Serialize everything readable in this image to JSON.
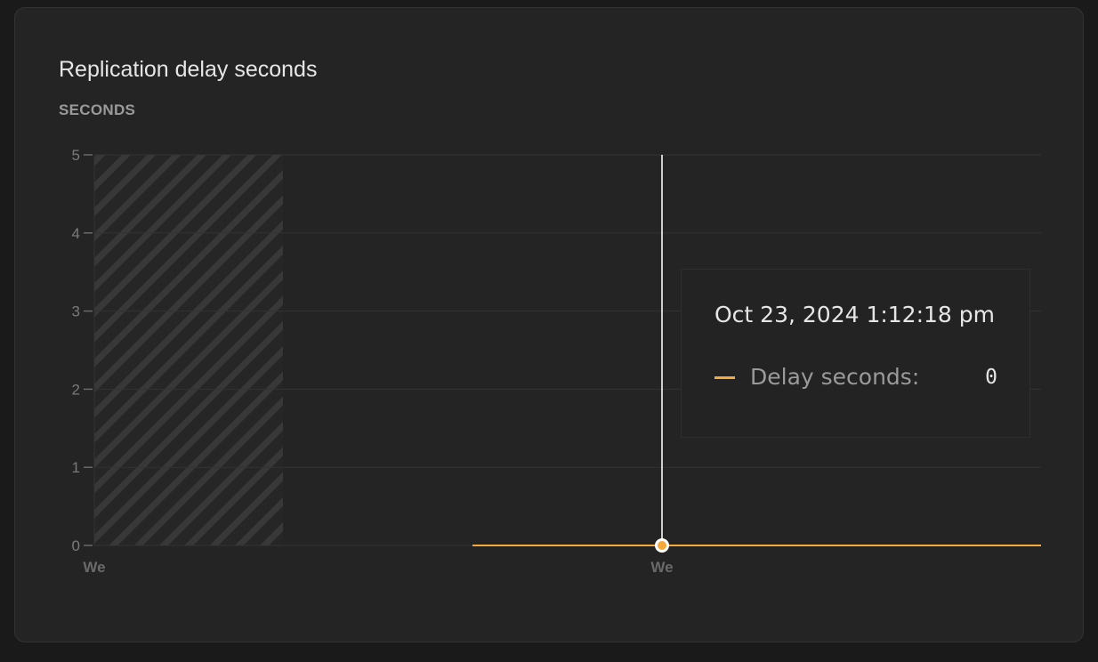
{
  "chart_data": {
    "type": "line",
    "title": "Replication delay seconds",
    "ylabel": "SECONDS",
    "ylim": [
      0,
      5
    ],
    "yticks": [
      "0",
      "1",
      "2",
      "3",
      "4",
      "5"
    ],
    "xticks": [
      "We",
      "We"
    ],
    "grid": true,
    "no_data_region": "hatched, left of the series start",
    "series": [
      {
        "name": "Delay seconds",
        "values": [
          0,
          0
        ],
        "color": "#f5a93a"
      }
    ],
    "tooltip": {
      "date": "Oct 23, 2024 1:12:18 pm",
      "label": "Delay seconds:",
      "value": "0"
    }
  }
}
